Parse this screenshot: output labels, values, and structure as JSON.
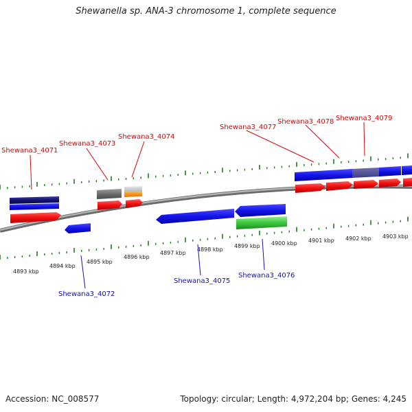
{
  "title": "Shewanella sp. ANA-3 chromosome 1, complete sequence",
  "footer": {
    "accession": "Accession: NC_008577",
    "topology": "Topology: circular; Length: 4,972,204 bp; Genes: 4,245"
  },
  "colors": {
    "forward_label": "#e00000",
    "reverse_label": "#1010b8",
    "backbone": "#8c8c8c",
    "ticks": "#1e7a1e"
  },
  "kbp_labels": [
    "4893 kbp",
    "4894 kbp",
    "4895 kbp",
    "4896 kbp",
    "4897 kbp",
    "4898 kbp",
    "4899 kbp",
    "4900 kbp",
    "4901 kbp",
    "4902 kbp",
    "4903 kbp"
  ],
  "forward_labels": [
    "Shewana3_4071",
    "Shewana3_4073",
    "Shewana3_4074",
    "Shewana3_4077",
    "Shewana3_4078",
    "Shewana3_4079"
  ],
  "reverse_labels": [
    "Shewana3_4072",
    "Shewana3_4075",
    "Shewana3_4076"
  ]
}
